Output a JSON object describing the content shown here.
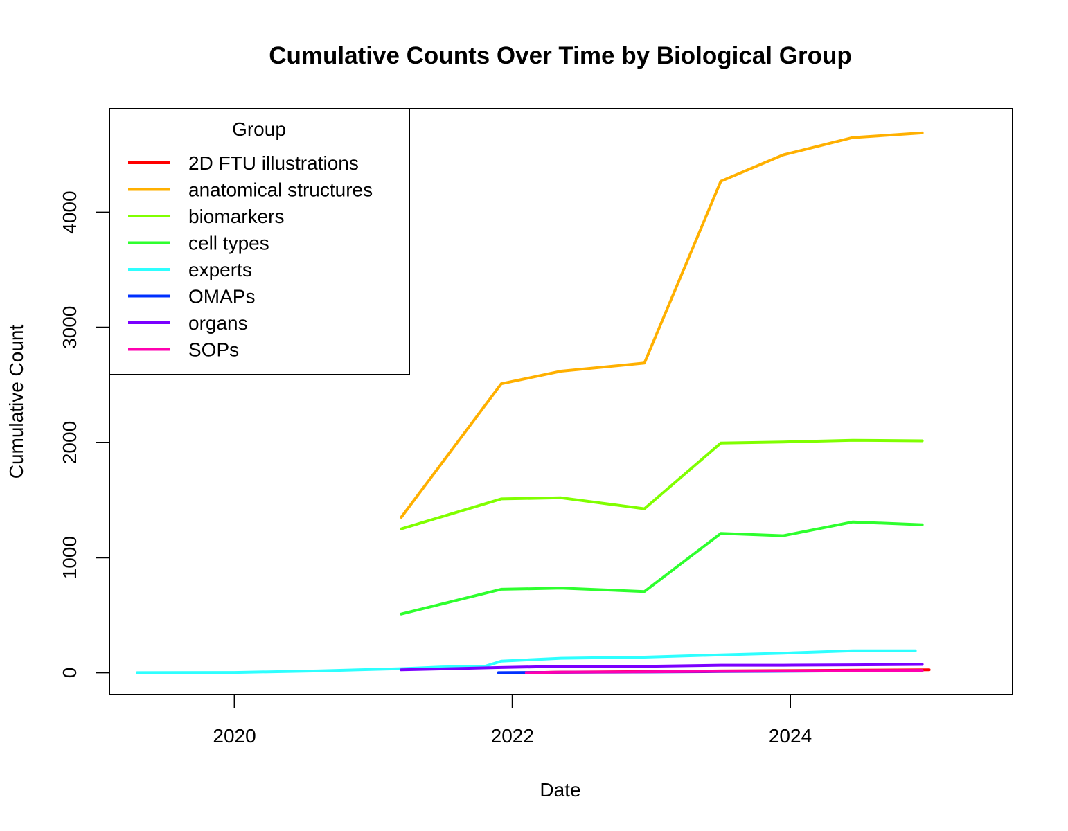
{
  "chart_data": {
    "type": "line",
    "title": "Cumulative Counts Over Time by Biological Group",
    "xlabel": "Date",
    "ylabel": "Cumulative Count",
    "xlim": [
      2019.1,
      2025.6
    ],
    "ylim": [
      -190,
      4900
    ],
    "xticks": [
      {
        "value": 2020,
        "label": "2020"
      },
      {
        "value": 2022,
        "label": "2022"
      },
      {
        "value": 2024,
        "label": "2024"
      }
    ],
    "yticks": [
      {
        "value": 0,
        "label": "0"
      },
      {
        "value": 1000,
        "label": "1000"
      },
      {
        "value": 2000,
        "label": "2000"
      },
      {
        "value": 3000,
        "label": "3000"
      },
      {
        "value": 4000,
        "label": "4000"
      }
    ],
    "legend": {
      "title": "Group",
      "position": "top-left"
    },
    "grid": false,
    "series": [
      {
        "name": "2D FTU illustrations",
        "color": "#FF0000",
        "x": [
          2022.1,
          2022.35,
          2023.0,
          2023.5,
          2024.0,
          2024.5,
          2025.0
        ],
        "y": [
          0,
          5,
          10,
          15,
          18,
          22,
          25
        ]
      },
      {
        "name": "anatomical structures",
        "color": "#FFB000",
        "x": [
          2021.2,
          2021.92,
          2022.35,
          2022.95,
          2023.5,
          2023.95,
          2024.45,
          2024.95
        ],
        "y": [
          1350,
          2510,
          2620,
          2690,
          4270,
          4500,
          4650,
          4690
        ]
      },
      {
        "name": "biomarkers",
        "color": "#80FF00",
        "x": [
          2021.2,
          2021.92,
          2022.35,
          2022.95,
          2023.5,
          2023.95,
          2024.45,
          2024.95
        ],
        "y": [
          1250,
          1510,
          1520,
          1425,
          1995,
          2005,
          2020,
          2015
        ]
      },
      {
        "name": "cell types",
        "color": "#2EFF2E",
        "x": [
          2021.2,
          2021.92,
          2022.35,
          2022.95,
          2023.5,
          2023.95,
          2024.45,
          2024.95
        ],
        "y": [
          510,
          725,
          735,
          705,
          1210,
          1190,
          1310,
          1285
        ]
      },
      {
        "name": "experts",
        "color": "#2EFFFF",
        "x": [
          2019.3,
          2020.0,
          2020.6,
          2021.2,
          2021.5,
          2021.8,
          2021.92,
          2022.35,
          2022.95,
          2023.5,
          2023.95,
          2024.45,
          2024.9
        ],
        "y": [
          0,
          2,
          15,
          35,
          50,
          55,
          100,
          125,
          135,
          155,
          170,
          190,
          190
        ]
      },
      {
        "name": "OMAPs",
        "color": "#0030FF",
        "x": [
          2021.9,
          2022.35,
          2023.0,
          2023.5,
          2024.0,
          2024.5,
          2024.95
        ],
        "y": [
          0,
          3,
          6,
          10,
          13,
          16,
          18
        ]
      },
      {
        "name": "organs",
        "color": "#7A00FF",
        "x": [
          2021.2,
          2021.92,
          2022.35,
          2022.95,
          2023.5,
          2023.95,
          2024.45,
          2024.95
        ],
        "y": [
          25,
          45,
          55,
          55,
          65,
          65,
          68,
          72
        ]
      },
      {
        "name": "SOPs",
        "color": "#FF00B0",
        "x": [
          2022.1,
          2022.35,
          2023.0,
          2023.5,
          2024.0,
          2024.5,
          2024.95
        ],
        "y": [
          0,
          4,
          8,
          12,
          15,
          18,
          20
        ]
      }
    ]
  }
}
